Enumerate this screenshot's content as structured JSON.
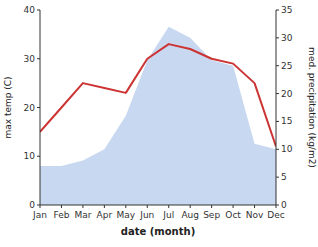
{
  "chart_data": {
    "type": "line",
    "categories": [
      "Jan",
      "Feb",
      "Mar",
      "Apr",
      "May",
      "Jun",
      "Jul",
      "Aug",
      "Sep",
      "Oct",
      "Nov",
      "Dec"
    ],
    "xlabel": "date (month)",
    "ylabel": "max temp (C)",
    "y2label": "med. precipitation (kg/m2)",
    "ylim": [
      0,
      40
    ],
    "yticks": [
      0,
      10,
      20,
      30,
      40
    ],
    "y2lim": [
      0,
      35
    ],
    "y2ticks": [
      0,
      5,
      10,
      15,
      20,
      25,
      30,
      35
    ],
    "grid": false,
    "series": [
      {
        "type": "area",
        "axis": "y2",
        "color": "#c8d8f0",
        "values": [
          7,
          7,
          8,
          10,
          16,
          26,
          32,
          30,
          26,
          25,
          11,
          10
        ]
      },
      {
        "type": "line",
        "color": "#cc3333",
        "values": [
          15,
          20,
          25,
          24,
          23,
          30,
          33,
          32,
          30,
          29,
          25,
          12
        ]
      }
    ]
  }
}
